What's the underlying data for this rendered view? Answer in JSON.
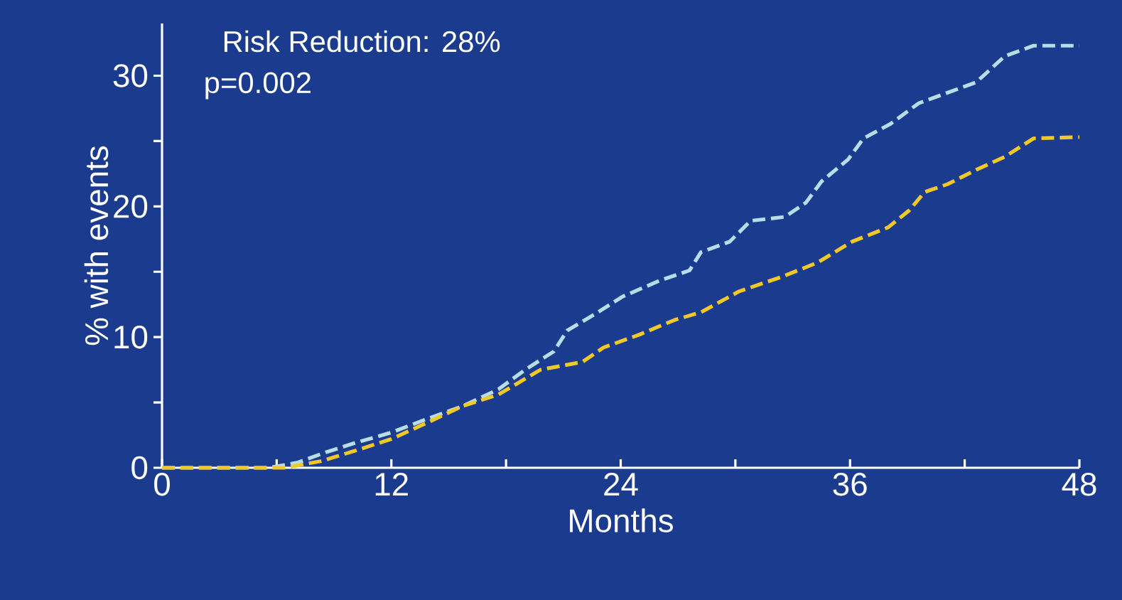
{
  "chart_data": {
    "type": "line",
    "xlabel": "Months",
    "ylabel": "% with events",
    "annotations": [
      "Risk Reduction:  28%",
      "p=0.002"
    ],
    "xlim": [
      0,
      48
    ],
    "ylim": [
      0,
      34
    ],
    "xticks": [
      0,
      {
        "value": 6,
        "label": null
      },
      12,
      {
        "value": 18,
        "label": null
      },
      24,
      {
        "value": 30,
        "label": null
      },
      36,
      {
        "value": 42,
        "label": null
      },
      48
    ],
    "yticks": [
      0,
      {
        "value": 5,
        "label": null
      },
      10,
      {
        "value": 15,
        "label": null
      },
      20,
      {
        "value": 25,
        "label": null
      },
      30
    ],
    "line_style": "dashed",
    "marker": "none",
    "series": [
      {
        "color": "#b8dcea",
        "x": [
          0,
          5.6,
          7.1,
          8.6,
          10.1,
          12,
          13.8,
          15.7,
          17.6,
          19,
          20.5,
          21.2,
          22.7,
          24.1,
          26,
          27.6,
          28.2,
          29.7,
          30.8,
          32.6,
          33.7,
          34.5,
          35.9,
          36.7,
          38.1,
          39.6,
          41.1,
          42.6,
          44.1,
          45.6,
          48
        ],
        "values": [
          0,
          0,
          0.4,
          1.2,
          1.9,
          2.7,
          3.7,
          4.7,
          6.0,
          7.5,
          8.9,
          10.5,
          11.8,
          13.1,
          14.3,
          15.1,
          16.5,
          17.3,
          18.9,
          19.2,
          20.3,
          21.9,
          23.6,
          25.2,
          26.3,
          27.9,
          28.7,
          29.5,
          31.5,
          32.3,
          32.3
        ]
      },
      {
        "color": "#f0c828",
        "x": [
          0,
          6.4,
          8.3,
          10.1,
          12,
          13.8,
          15.7,
          17.6,
          19.8,
          22,
          23.1,
          25,
          26.8,
          28.2,
          30.2,
          32.4,
          34.3,
          36.1,
          38,
          39.1,
          39.9,
          41.1,
          42.6,
          44.1,
          45.6,
          48
        ],
        "values": [
          0,
          0,
          0.5,
          1.3,
          2.2,
          3.4,
          4.7,
          5.6,
          7.5,
          8.1,
          9.2,
          10.2,
          11.3,
          11.9,
          13.5,
          14.6,
          15.7,
          17.3,
          18.4,
          19.7,
          21.1,
          21.7,
          22.8,
          23.8,
          25.2,
          25.3
        ]
      }
    ]
  }
}
